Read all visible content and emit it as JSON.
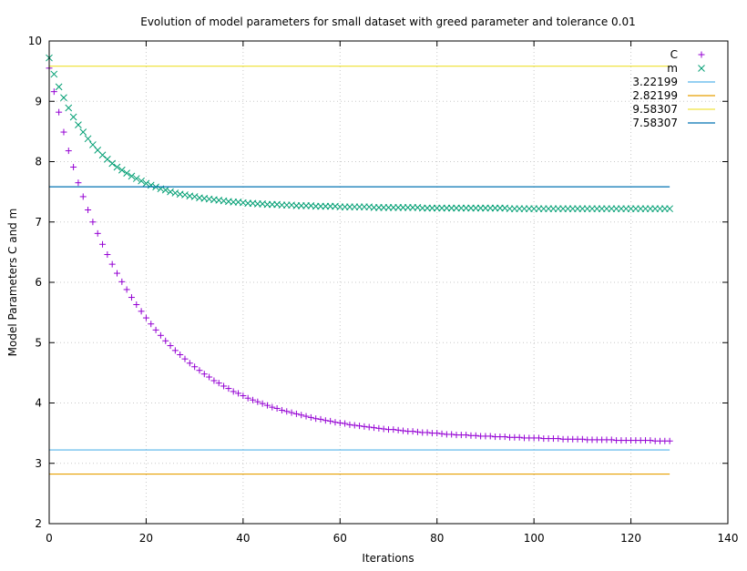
{
  "chart_data": {
    "type": "scatter",
    "title": "Evolution of model parameters for small dataset with greed parameter and tolerance 0.01",
    "xlabel": "Iterations",
    "ylabel": "Model Parameters C and m",
    "xlim": [
      0,
      140
    ],
    "ylim": [
      2,
      10
    ],
    "x_ticks": [
      0,
      20,
      40,
      60,
      80,
      100,
      120,
      140
    ],
    "y_ticks": [
      2,
      3,
      4,
      5,
      6,
      7,
      8,
      9,
      10
    ],
    "grid": true,
    "legend_position": "top-right",
    "series": [
      {
        "name": "C",
        "kind": "points",
        "marker": "plus",
        "color": "#9400d3",
        "x_start": 0,
        "x_end": 128,
        "x_step": 1,
        "values": [
          9.55,
          9.16,
          8.82,
          8.49,
          8.18,
          7.91,
          7.65,
          7.42,
          7.2,
          7.0,
          6.81,
          6.63,
          6.46,
          6.3,
          6.15,
          6.01,
          5.88,
          5.75,
          5.63,
          5.52,
          5.41,
          5.31,
          5.21,
          5.12,
          5.03,
          4.95,
          4.87,
          4.8,
          4.73,
          4.66,
          4.6,
          4.54,
          4.48,
          4.43,
          4.37,
          4.33,
          4.28,
          4.24,
          4.19,
          4.16,
          4.12,
          4.08,
          4.05,
          4.02,
          3.99,
          3.96,
          3.93,
          3.91,
          3.88,
          3.86,
          3.84,
          3.82,
          3.8,
          3.78,
          3.76,
          3.74,
          3.73,
          3.71,
          3.7,
          3.68,
          3.67,
          3.66,
          3.64,
          3.63,
          3.62,
          3.61,
          3.6,
          3.59,
          3.58,
          3.57,
          3.56,
          3.56,
          3.55,
          3.54,
          3.53,
          3.53,
          3.52,
          3.51,
          3.51,
          3.5,
          3.5,
          3.49,
          3.48,
          3.48,
          3.47,
          3.47,
          3.47,
          3.46,
          3.46,
          3.45,
          3.45,
          3.45,
          3.44,
          3.44,
          3.44,
          3.43,
          3.43,
          3.43,
          3.42,
          3.42,
          3.42,
          3.42,
          3.41,
          3.41,
          3.41,
          3.41,
          3.4,
          3.4,
          3.4,
          3.4,
          3.4,
          3.39,
          3.39,
          3.39,
          3.39,
          3.39,
          3.39,
          3.38,
          3.38,
          3.38,
          3.38,
          3.38,
          3.38,
          3.38,
          3.38,
          3.37,
          3.37,
          3.37,
          3.37
        ]
      },
      {
        "name": "m",
        "kind": "points",
        "marker": "cross",
        "color": "#009e73",
        "x_start": 0,
        "x_end": 128,
        "x_step": 1,
        "values": [
          9.72,
          9.45,
          9.24,
          9.06,
          8.89,
          8.74,
          8.61,
          8.49,
          8.38,
          8.28,
          8.19,
          8.11,
          8.04,
          7.97,
          7.91,
          7.86,
          7.81,
          7.76,
          7.72,
          7.68,
          7.64,
          7.61,
          7.58,
          7.55,
          7.53,
          7.5,
          7.48,
          7.46,
          7.45,
          7.43,
          7.42,
          7.4,
          7.39,
          7.38,
          7.37,
          7.36,
          7.35,
          7.34,
          7.33,
          7.33,
          7.32,
          7.31,
          7.31,
          7.3,
          7.3,
          7.29,
          7.29,
          7.29,
          7.28,
          7.28,
          7.28,
          7.27,
          7.27,
          7.27,
          7.27,
          7.26,
          7.26,
          7.26,
          7.26,
          7.26,
          7.25,
          7.25,
          7.25,
          7.25,
          7.25,
          7.25,
          7.25,
          7.24,
          7.24,
          7.24,
          7.24,
          7.24,
          7.24,
          7.24,
          7.24,
          7.24,
          7.24,
          7.23,
          7.23,
          7.23,
          7.23,
          7.23,
          7.23,
          7.23,
          7.23,
          7.23,
          7.23,
          7.23,
          7.23,
          7.23,
          7.23,
          7.23,
          7.23,
          7.23,
          7.23,
          7.22,
          7.22,
          7.22,
          7.22,
          7.22,
          7.22,
          7.22,
          7.22,
          7.22,
          7.22,
          7.22,
          7.22,
          7.22,
          7.22,
          7.22,
          7.22,
          7.22,
          7.22,
          7.22,
          7.22,
          7.22,
          7.22,
          7.22,
          7.22,
          7.22,
          7.22,
          7.22,
          7.22,
          7.22,
          7.22,
          7.22,
          7.22,
          7.22,
          7.22
        ]
      },
      {
        "name": "3.22199",
        "kind": "line",
        "color": "#56b4e9",
        "x": [
          0,
          128
        ],
        "values": [
          3.22199,
          3.22199
        ]
      },
      {
        "name": "2.82199",
        "kind": "line",
        "color": "#e69f00",
        "x": [
          0,
          128
        ],
        "values": [
          2.82199,
          2.82199
        ]
      },
      {
        "name": "9.58307",
        "kind": "line",
        "color": "#f0e442",
        "x": [
          0,
          128
        ],
        "values": [
          9.58307,
          9.58307
        ]
      },
      {
        "name": "7.58307",
        "kind": "line",
        "color": "#0072b2",
        "x": [
          0,
          128
        ],
        "values": [
          7.58307,
          7.58307
        ]
      }
    ]
  }
}
